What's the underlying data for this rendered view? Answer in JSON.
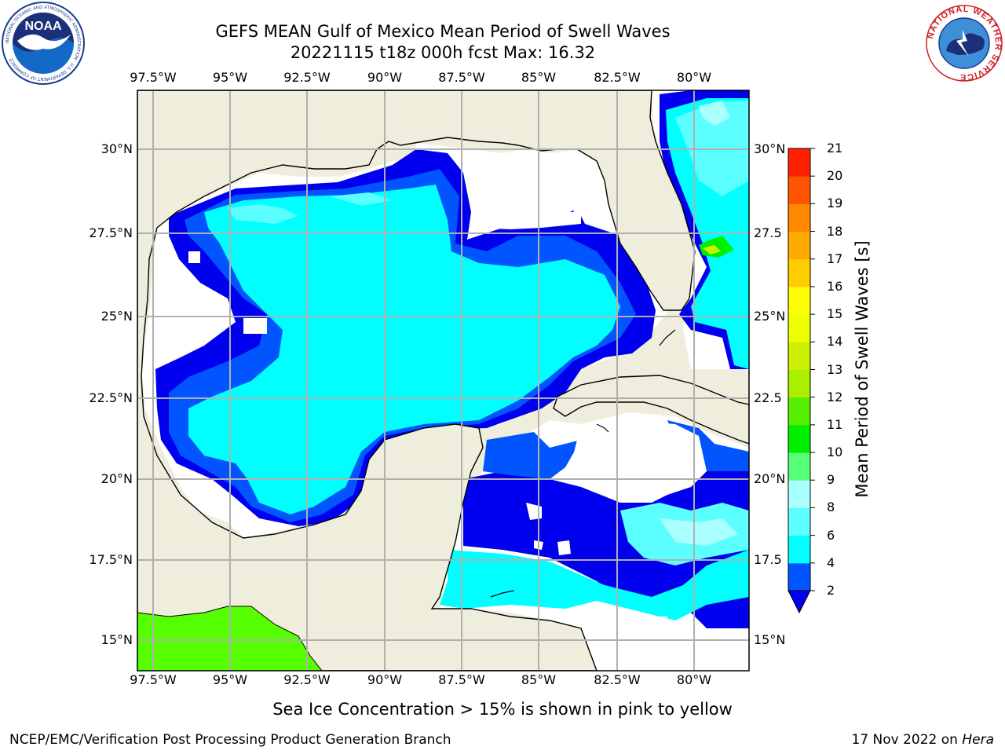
{
  "title": {
    "line1": "GEFS MEAN Gulf of Mexico Mean Period of Swell Waves",
    "line2": "20221115 t18z 000h fcst   Max: 16.32"
  },
  "map": {
    "lon_ticks": [
      "97.5°W",
      "95°W",
      "92.5°W",
      "90°W",
      "87.5°W",
      "85°W",
      "82.5°W",
      "80°W"
    ],
    "lat_ticks_left": [
      "30°N",
      "27.5°N",
      "25°N",
      "22.5°N",
      "20°N",
      "17.5°N",
      "15°N"
    ],
    "lat_ticks_right": [
      "30°N",
      "27.5",
      "25°N",
      "22.5",
      "20°N",
      "17.5",
      "15°N"
    ],
    "colors": {
      "land": "#efeedc",
      "ocean_fill_main": "#00ffff",
      "grid": "#b0b0b0"
    }
  },
  "colorbar": {
    "label": "Mean Period of Swell Waves [s]",
    "ticks": [
      "2",
      "4",
      "6",
      "8",
      "9",
      "10",
      "11",
      "12",
      "13",
      "14",
      "15",
      "16",
      "17",
      "18",
      "19",
      "20",
      "21"
    ],
    "colors": [
      "#0055ff",
      "#00ffff",
      "#5cffff",
      "#aaffff",
      "#55ff77",
      "#00ee00",
      "#55ee00",
      "#aaee00",
      "#ccf000",
      "#eeff00",
      "#ffff00",
      "#ffcc00",
      "#ffaa00",
      "#ff8800",
      "#ff5500",
      "#ff2200"
    ],
    "extend_color": "#0000ee"
  },
  "logos": {
    "noaa": {
      "text": "NOAA",
      "ring_text": "NATIONAL OCEANIC AND ATMOSPHERIC ADMINISTRATION · U.S. DEPARTMENT OF COMMERCE"
    },
    "nws": {
      "ring_text": "NATIONAL WEATHER SERVICE"
    }
  },
  "footer": {
    "subtitle": "Sea Ice Concentration > 15% is shown in pink to yellow",
    "left": "NCEP/EMC/Verification Post Processing Product Generation Branch",
    "date": "17 Nov 2022 on",
    "host": "Hera"
  }
}
